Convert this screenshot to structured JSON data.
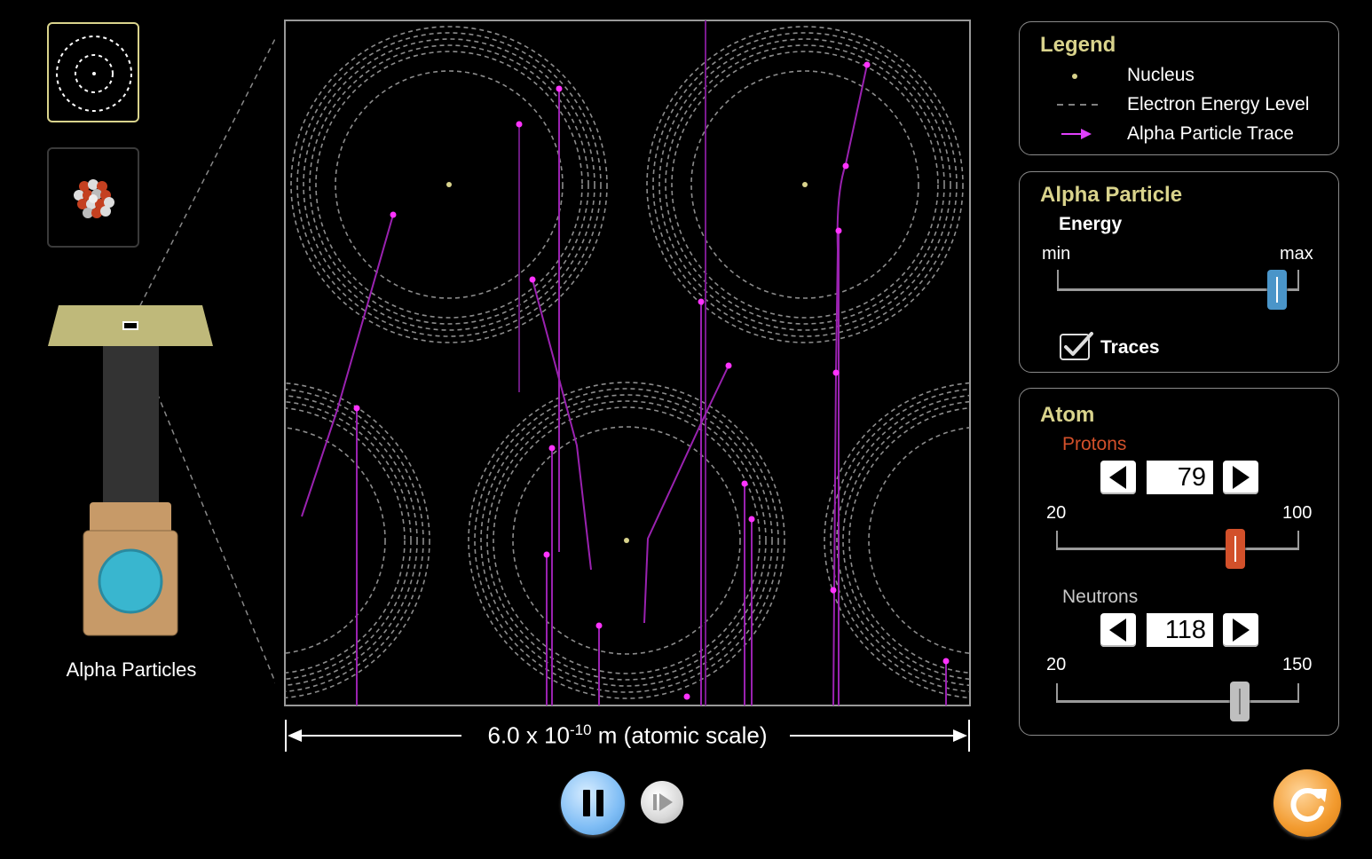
{
  "views": [
    {
      "name": "atom-view",
      "selected": true
    },
    {
      "name": "nucleus-view",
      "selected": false
    }
  ],
  "gun": {
    "label": "Alpha Particles"
  },
  "scale": {
    "label_prefix": "6.0 x 10",
    "exponent": "-10",
    "label_suffix": " m (atomic scale)"
  },
  "legend": {
    "title": "Legend",
    "items": [
      {
        "icon": "nucleus-dot-icon",
        "label": "Nucleus"
      },
      {
        "icon": "dashed-line-icon",
        "label": "Electron Energy Level"
      },
      {
        "icon": "arrow-icon",
        "label": "Alpha Particle Trace"
      }
    ]
  },
  "alpha": {
    "title": "Alpha Particle",
    "energy_label": "Energy",
    "min_label": "min",
    "max_label": "max",
    "energy_fraction": 0.91,
    "traces_label": "Traces",
    "traces_checked": true
  },
  "atom": {
    "title": "Atom",
    "protons": {
      "label": "Protons",
      "value": "79",
      "min": "20",
      "max": "100",
      "color": "#d2502a"
    },
    "neutrons": {
      "label": "Neutrons",
      "value": "118",
      "min": "20",
      "max": "150",
      "color": "#c8c8c8"
    }
  },
  "colors": {
    "accent": "#d9d38c",
    "trace": "#e040fb",
    "reset": "#f0a030",
    "play": "#8ec8ff"
  }
}
